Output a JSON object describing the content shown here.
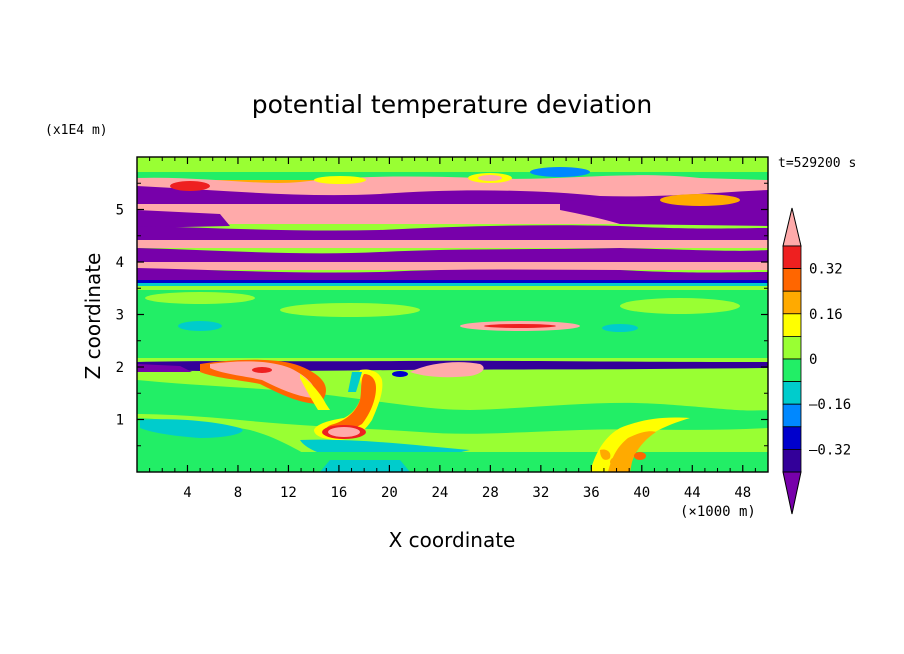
{
  "chart_data": {
    "type": "heatmap",
    "title": "potential temperature deviation",
    "xlabel": "X coordinate",
    "ylabel": "Z coordinate",
    "x_unit": "(×1000 m)",
    "y_unit": "(x1E4 m)",
    "time_label": "t=529200 s",
    "xlim": [
      0,
      50
    ],
    "ylim": [
      0,
      6
    ],
    "x_ticks": [
      4,
      8,
      12,
      16,
      20,
      24,
      28,
      32,
      36,
      40,
      44,
      48
    ],
    "y_ticks": [
      1,
      2,
      3,
      4,
      5
    ],
    "colorbar": {
      "levels": [
        -0.4,
        -0.32,
        -0.24,
        -0.16,
        -0.08,
        0,
        0.08,
        0.16,
        0.24,
        0.32,
        0.4
      ],
      "labels": [
        "0.32",
        "0.16",
        "0",
        "–0.16",
        "–0.32"
      ],
      "label_values": [
        0.32,
        0.16,
        0,
        -0.16,
        -0.32
      ],
      "colors": [
        "#ffaaaa",
        "#ee2020",
        "#ff6600",
        "#ffaa00",
        "#ffff00",
        "#99ff33",
        "#22ee66",
        "#00cccc",
        "#0088ff",
        "#0000cc",
        "#330099",
        "#7700aa"
      ],
      "extend": "both"
    },
    "background_color": "#99ff33"
  }
}
